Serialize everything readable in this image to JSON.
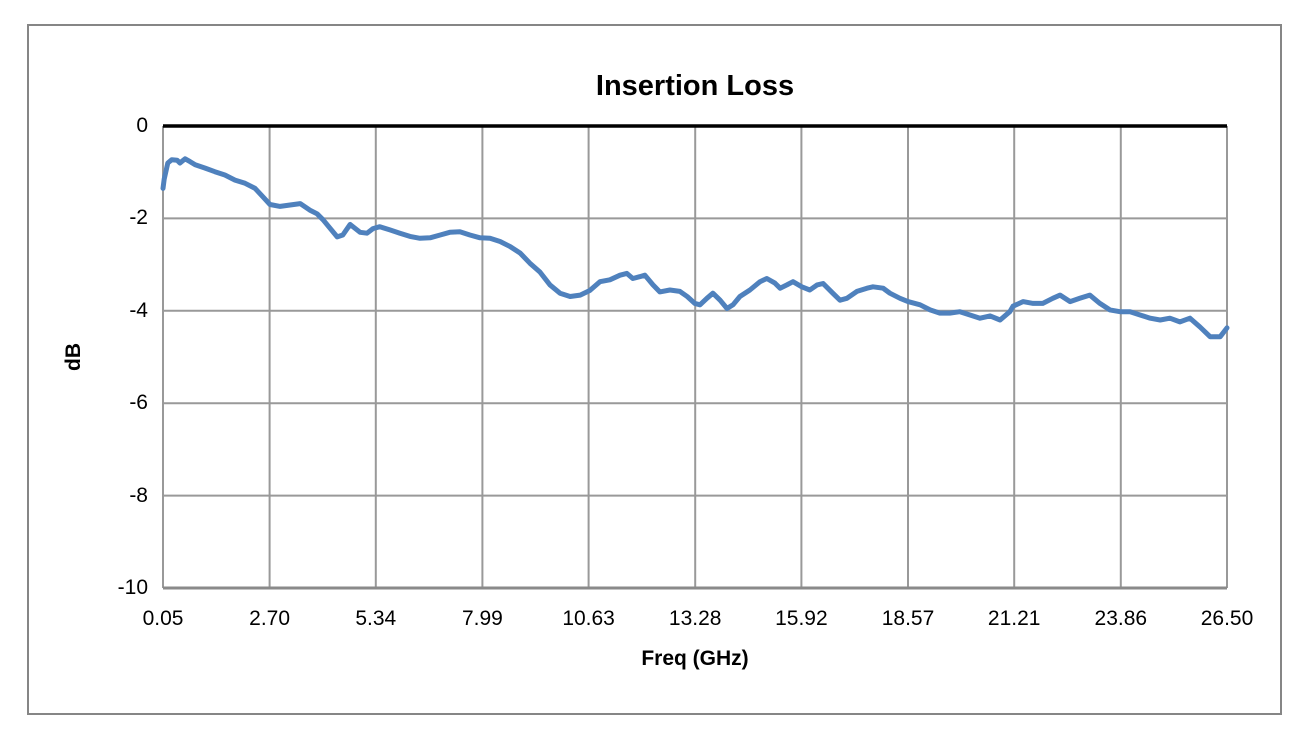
{
  "chart_data": {
    "type": "line",
    "title": "Insertion Loss",
    "xlabel": "Freq (GHz)",
    "ylabel": "dB",
    "xlim": [
      0.05,
      26.5
    ],
    "ylim": [
      -10,
      0
    ],
    "x_ticks": [
      "0.05",
      "2.70",
      "5.34",
      "7.99",
      "10.63",
      "13.28",
      "15.92",
      "18.57",
      "21.21",
      "23.86",
      "26.50"
    ],
    "y_ticks": [
      "0",
      "-2",
      "-4",
      "-6",
      "-8",
      "-10"
    ],
    "grid": true,
    "legend": false,
    "series": [
      {
        "name": "Insertion Loss",
        "color": "#4F81BD",
        "points": [
          [
            0.05,
            -1.35
          ],
          [
            0.08,
            -1.15
          ],
          [
            0.17,
            -0.8
          ],
          [
            0.27,
            -0.73
          ],
          [
            0.4,
            -0.74
          ],
          [
            0.47,
            -0.8
          ],
          [
            0.6,
            -0.71
          ],
          [
            0.72,
            -0.77
          ],
          [
            0.85,
            -0.84
          ],
          [
            1.09,
            -0.91
          ],
          [
            1.34,
            -0.99
          ],
          [
            1.59,
            -1.06
          ],
          [
            1.84,
            -1.17
          ],
          [
            2.09,
            -1.24
          ],
          [
            2.34,
            -1.35
          ],
          [
            2.55,
            -1.55
          ],
          [
            2.71,
            -1.7
          ],
          [
            2.96,
            -1.74
          ],
          [
            3.21,
            -1.71
          ],
          [
            3.46,
            -1.68
          ],
          [
            3.7,
            -1.82
          ],
          [
            3.88,
            -1.9
          ],
          [
            4.03,
            -2.03
          ],
          [
            4.2,
            -2.21
          ],
          [
            4.38,
            -2.4
          ],
          [
            4.52,
            -2.36
          ],
          [
            4.7,
            -2.13
          ],
          [
            4.95,
            -2.3
          ],
          [
            5.12,
            -2.32
          ],
          [
            5.27,
            -2.22
          ],
          [
            5.44,
            -2.18
          ],
          [
            5.69,
            -2.25
          ],
          [
            5.94,
            -2.32
          ],
          [
            6.19,
            -2.39
          ],
          [
            6.44,
            -2.43
          ],
          [
            6.69,
            -2.42
          ],
          [
            6.94,
            -2.36
          ],
          [
            7.18,
            -2.3
          ],
          [
            7.43,
            -2.29
          ],
          [
            7.68,
            -2.36
          ],
          [
            7.93,
            -2.42
          ],
          [
            8.18,
            -2.43
          ],
          [
            8.43,
            -2.5
          ],
          [
            8.68,
            -2.61
          ],
          [
            8.93,
            -2.75
          ],
          [
            9.17,
            -2.97
          ],
          [
            9.42,
            -3.16
          ],
          [
            9.67,
            -3.44
          ],
          [
            9.92,
            -3.62
          ],
          [
            10.17,
            -3.69
          ],
          [
            10.42,
            -3.66
          ],
          [
            10.66,
            -3.56
          ],
          [
            10.91,
            -3.37
          ],
          [
            11.16,
            -3.33
          ],
          [
            11.41,
            -3.23
          ],
          [
            11.58,
            -3.19
          ],
          [
            11.73,
            -3.3
          ],
          [
            11.91,
            -3.26
          ],
          [
            12.03,
            -3.23
          ],
          [
            12.23,
            -3.44
          ],
          [
            12.4,
            -3.59
          ],
          [
            12.65,
            -3.55
          ],
          [
            12.9,
            -3.58
          ],
          [
            13.08,
            -3.69
          ],
          [
            13.27,
            -3.84
          ],
          [
            13.4,
            -3.87
          ],
          [
            13.57,
            -3.73
          ],
          [
            13.72,
            -3.62
          ],
          [
            13.9,
            -3.77
          ],
          [
            14.07,
            -3.95
          ],
          [
            14.22,
            -3.87
          ],
          [
            14.39,
            -3.69
          ],
          [
            14.64,
            -3.55
          ],
          [
            14.89,
            -3.37
          ],
          [
            15.06,
            -3.3
          ],
          [
            15.26,
            -3.4
          ],
          [
            15.39,
            -3.51
          ],
          [
            15.56,
            -3.44
          ],
          [
            15.71,
            -3.37
          ],
          [
            15.93,
            -3.48
          ],
          [
            16.13,
            -3.55
          ],
          [
            16.31,
            -3.44
          ],
          [
            16.46,
            -3.41
          ],
          [
            16.7,
            -3.62
          ],
          [
            16.88,
            -3.77
          ],
          [
            17.05,
            -3.73
          ],
          [
            17.3,
            -3.58
          ],
          [
            17.55,
            -3.51
          ],
          [
            17.7,
            -3.48
          ],
          [
            17.95,
            -3.51
          ],
          [
            18.12,
            -3.62
          ],
          [
            18.37,
            -3.73
          ],
          [
            18.57,
            -3.8
          ],
          [
            18.87,
            -3.87
          ],
          [
            19.12,
            -3.98
          ],
          [
            19.36,
            -4.05
          ],
          [
            19.61,
            -4.05
          ],
          [
            19.86,
            -4.02
          ],
          [
            20.11,
            -4.09
          ],
          [
            20.36,
            -4.16
          ],
          [
            20.61,
            -4.11
          ],
          [
            20.86,
            -4.2
          ],
          [
            21.1,
            -4.02
          ],
          [
            21.18,
            -3.9
          ],
          [
            21.43,
            -3.8
          ],
          [
            21.68,
            -3.84
          ],
          [
            21.92,
            -3.84
          ],
          [
            22.17,
            -3.73
          ],
          [
            22.35,
            -3.66
          ],
          [
            22.6,
            -3.8
          ],
          [
            22.84,
            -3.73
          ],
          [
            23.09,
            -3.66
          ],
          [
            23.34,
            -3.84
          ],
          [
            23.59,
            -3.98
          ],
          [
            23.84,
            -4.02
          ],
          [
            24.09,
            -4.02
          ],
          [
            24.34,
            -4.09
          ],
          [
            24.59,
            -4.16
          ],
          [
            24.84,
            -4.2
          ],
          [
            25.08,
            -4.16
          ],
          [
            25.33,
            -4.24
          ],
          [
            25.58,
            -4.16
          ],
          [
            25.83,
            -4.35
          ],
          [
            26.08,
            -4.56
          ],
          [
            26.33,
            -4.56
          ],
          [
            26.5,
            -4.37
          ]
        ]
      }
    ],
    "colors": {
      "line": "#4F81BD",
      "gridline": "#999999",
      "bottom_axis": "#8A8A8A",
      "zero_axis": "#000000",
      "border": "#868686",
      "text": "#000000"
    }
  }
}
